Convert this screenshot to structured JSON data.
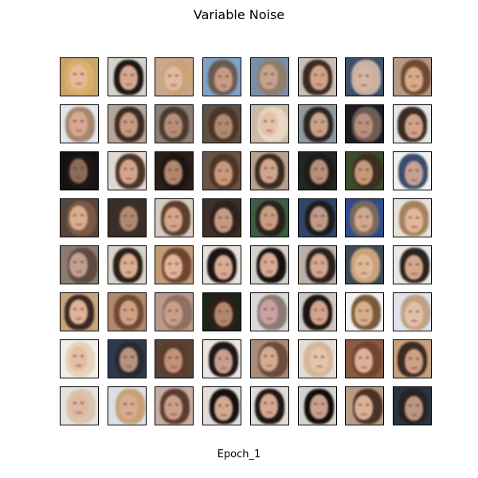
{
  "figure": {
    "title": "Variable Noise",
    "caption": "Epoch_1",
    "rows": 8,
    "cols": 8
  },
  "tile_palette": [
    {
      "bg": "#c9a46a",
      "hair": "#d9b06a",
      "skin": "#e6b99a"
    },
    {
      "bg": "#d8d2cc",
      "hair": "#1c1714",
      "skin": "#d7a890"
    },
    {
      "bg": "#c8a98f",
      "hair": "#caa277",
      "skin": "#e2b9a1"
    },
    {
      "bg": "#7fa2c8",
      "hair": "#6a5a52",
      "skin": "#c69c86"
    },
    {
      "bg": "#7a8ea8",
      "hair": "#8f7e6e",
      "skin": "#c7a389"
    },
    {
      "bg": "#c9bfb6",
      "hair": "#3c2a21",
      "skin": "#d3a388"
    },
    {
      "bg": "#3f5068",
      "hair": "#c7b2a4",
      "skin": "#d3b6a8"
    },
    {
      "bg": "#b79a83",
      "hair": "#6f4a33",
      "skin": "#d7ab8a"
    },
    {
      "bg": "#dfe6ee",
      "hair": "#a7876e",
      "skin": "#d7a892"
    },
    {
      "bg": "#b7a596",
      "hair": "#3a2a22",
      "skin": "#c79c82"
    },
    {
      "bg": "#8f7e74",
      "hair": "#4c3a30",
      "skin": "#b88e78"
    },
    {
      "bg": "#5e5042",
      "hair": "#4a3527",
      "skin": "#b08a6e"
    },
    {
      "bg": "#cbb9aa",
      "hair": "#e8d7c4",
      "skin": "#e6c1ab"
    },
    {
      "bg": "#8e9aa3",
      "hair": "#2c2420",
      "skin": "#caa28b"
    },
    {
      "bg": "#1b1b22",
      "hair": "#6e5d52",
      "skin": "#b9917f"
    },
    {
      "bg": "#e7e7e7",
      "hair": "#3a2a22",
      "skin": "#d2a38a"
    },
    {
      "bg": "#121212",
      "hair": "#1e1512",
      "skin": "#8c6b5a"
    },
    {
      "bg": "#e1d8cf",
      "hair": "#4a3528",
      "skin": "#d3a68c"
    },
    {
      "bg": "#2a1f1b",
      "hair": "#1e1512",
      "skin": "#b2866f"
    },
    {
      "bg": "#6a5449",
      "hair": "#4e3527",
      "skin": "#c89a7f"
    },
    {
      "bg": "#b7a08e",
      "hair": "#3a2a22",
      "skin": "#d1a68f"
    },
    {
      "bg": "#202724",
      "hair": "#1e1a16",
      "skin": "#b78f79"
    },
    {
      "bg": "#3e4a2c",
      "hair": "#3c2e20",
      "skin": "#c59a78"
    },
    {
      "bg": "#f1f1f1",
      "hair": "#3b4d6a",
      "skin": "#c7a196"
    },
    {
      "bg": "#57443a",
      "hair": "#7a5a44",
      "skin": "#d9ad90"
    },
    {
      "bg": "#3a2e28",
      "hair": "#3a2e28",
      "skin": "#b28a73"
    },
    {
      "bg": "#d6ccc4",
      "hair": "#5b3e2b",
      "skin": "#d4a78c"
    },
    {
      "bg": "#3f3029",
      "hair": "#2f211b",
      "skin": "#c59b84"
    },
    {
      "bg": "#3a5e43",
      "hair": "#2a2018",
      "skin": "#c99d84"
    },
    {
      "bg": "#30456b",
      "hair": "#1e1a1a",
      "skin": "#c09a8a"
    },
    {
      "bg": "#2f4c8c",
      "hair": "#7a6a5c",
      "skin": "#d1a98e"
    },
    {
      "bg": "#e7e2dc",
      "hair": "#a4825e",
      "skin": "#e1b799"
    },
    {
      "bg": "#8b7a70",
      "hair": "#5e4a3e",
      "skin": "#c2a090"
    },
    {
      "bg": "#d8d3cd",
      "hair": "#2b1f19",
      "skin": "#dcae92"
    },
    {
      "bg": "#c49c74",
      "hair": "#6e4630",
      "skin": "#e2b49a"
    },
    {
      "bg": "#e6e1db",
      "hair": "#1a1412",
      "skin": "#d9ab93"
    },
    {
      "bg": "#d6d0ca",
      "hair": "#151111",
      "skin": "#d8ab94"
    },
    {
      "bg": "#b9afa6",
      "hair": "#2a211c",
      "skin": "#d5a88f"
    },
    {
      "bg": "#3d4b56",
      "hair": "#c7a27a",
      "skin": "#e2b99b"
    },
    {
      "bg": "#e8e8e8",
      "hair": "#2a221d",
      "skin": "#d5a78c"
    },
    {
      "bg": "#c7a47b",
      "hair": "#3a2a22",
      "skin": "#e0b498"
    },
    {
      "bg": "#b4886a",
      "hair": "#6e4a36",
      "skin": "#d2a286"
    },
    {
      "bg": "#b89b8c",
      "hair": "#8f7060",
      "skin": "#c9a08c"
    },
    {
      "bg": "#1a2418",
      "hair": "#2b2018",
      "skin": "#b3876e"
    },
    {
      "bg": "#d9d9dc",
      "hair": "#8a7b74",
      "skin": "#cba2a0"
    },
    {
      "bg": "#cfc7c0",
      "hair": "#1a1414",
      "skin": "#d4a48c"
    },
    {
      "bg": "#f2f2f2",
      "hair": "#7a5a3a",
      "skin": "#d8b08e"
    },
    {
      "bg": "#dfe4ec",
      "hair": "#c2a084",
      "skin": "#e2c1aa"
    },
    {
      "bg": "#f0eeeb",
      "hair": "#e6d4b8",
      "skin": "#e6bca4"
    },
    {
      "bg": "#2d3a52",
      "hair": "#2a2a30",
      "skin": "#b89480"
    },
    {
      "bg": "#5a4438",
      "hair": "#5a3c2c",
      "skin": "#c29278"
    },
    {
      "bg": "#e9e6e2",
      "hair": "#1e1614",
      "skin": "#c8a090"
    },
    {
      "bg": "#a88d7a",
      "hair": "#6a4c3c",
      "skin": "#d7aa90"
    },
    {
      "bg": "#e4ddd5",
      "hair": "#d5b79a",
      "skin": "#e6c3ad"
    },
    {
      "bg": "#8a5a42",
      "hair": "#6e4630",
      "skin": "#dfb097"
    },
    {
      "bg": "#c7a07e",
      "hair": "#3a2a22",
      "skin": "#cfa086"
    },
    {
      "bg": "#e6e3df",
      "hair": "#d8c7b0",
      "skin": "#e0b8a2"
    },
    {
      "bg": "#d9e0e6",
      "hair": "#c8a274",
      "skin": "#d8ab92"
    },
    {
      "bg": "#c7aea4",
      "hair": "#5a3c2e",
      "skin": "#cf9f8c"
    },
    {
      "bg": "#e3ded8",
      "hair": "#141010",
      "skin": "#d4a890"
    },
    {
      "bg": "#e2dcd6",
      "hair": "#1e1614",
      "skin": "#d8a890"
    },
    {
      "bg": "#d7d2cd",
      "hair": "#0f0c0c",
      "skin": "#cba08c"
    },
    {
      "bg": "#b99c84",
      "hair": "#4a3226",
      "skin": "#dbb096"
    },
    {
      "bg": "#2a3442",
      "hair": "#282220",
      "skin": "#bd9683"
    }
  ]
}
